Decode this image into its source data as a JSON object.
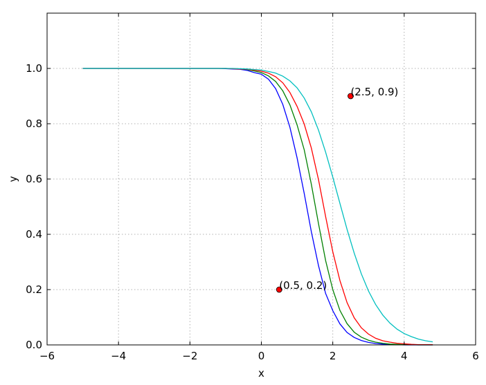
{
  "chart_data": {
    "type": "line",
    "xlabel": "x",
    "ylabel": "y",
    "xlim": [
      -6,
      6
    ],
    "ylim": [
      0.0,
      1.2
    ],
    "xticks": [
      -6,
      -4,
      -2,
      0,
      2,
      4,
      6
    ],
    "xtick_labels": [
      "−6",
      "−4",
      "−2",
      "0",
      "2",
      "4",
      "6"
    ],
    "yticks": [
      0.0,
      0.2,
      0.4,
      0.6,
      0.8,
      1.0
    ],
    "ytick_labels": [
      "0.0",
      "0.2",
      "0.4",
      "0.6",
      "0.8",
      "1.0"
    ],
    "grid": true,
    "x": [
      -5.0,
      -4.8,
      -4.6,
      -4.4,
      -4.2,
      -4.0,
      -3.8,
      -3.6,
      -3.4,
      -3.2,
      -3.0,
      -2.8,
      -2.6,
      -2.4,
      -2.2,
      -2.0,
      -1.8,
      -1.6,
      -1.4,
      -1.2,
      -1.0,
      -0.8,
      -0.6,
      -0.4,
      -0.2,
      0.0,
      0.2,
      0.4,
      0.6,
      0.8,
      1.0,
      1.2,
      1.4,
      1.6,
      1.8,
      2.0,
      2.2,
      2.4,
      2.6,
      2.8,
      3.0,
      3.2,
      3.4,
      3.6,
      3.8,
      4.0,
      4.2,
      4.4,
      4.6,
      4.8
    ],
    "series": [
      {
        "color": "#0000ff",
        "values": [
          1.0,
          1.0,
          1.0,
          1.0,
          1.0,
          1.0,
          1.0,
          1.0,
          1.0,
          1.0,
          1.0,
          1.0,
          1.0,
          1.0,
          1.0,
          1.0,
          1.0,
          1.0,
          1.0,
          1.0,
          0.999,
          0.998,
          0.997,
          0.993,
          0.985,
          0.979,
          0.961,
          0.927,
          0.87,
          0.787,
          0.677,
          0.548,
          0.409,
          0.287,
          0.186,
          0.124,
          0.076,
          0.045,
          0.027,
          0.016,
          0.009,
          0.005,
          0.003,
          0.002,
          0.001,
          0.0,
          0.0,
          0.0,
          0.0,
          0.0
        ]
      },
      {
        "color": "#008000",
        "values": [
          1.0,
          1.0,
          1.0,
          1.0,
          1.0,
          1.0,
          1.0,
          1.0,
          1.0,
          1.0,
          1.0,
          1.0,
          1.0,
          1.0,
          1.0,
          1.0,
          1.0,
          1.0,
          1.0,
          1.0,
          1.0,
          0.999,
          0.998,
          0.996,
          0.991,
          0.985,
          0.973,
          0.953,
          0.919,
          0.868,
          0.796,
          0.706,
          0.581,
          0.439,
          0.305,
          0.2,
          0.125,
          0.077,
          0.046,
          0.028,
          0.017,
          0.01,
          0.006,
          0.003,
          0.002,
          0.001,
          0.001,
          0.0,
          0.0,
          0.0
        ]
      },
      {
        "color": "#ff0000",
        "values": [
          1.0,
          1.0,
          1.0,
          1.0,
          1.0,
          1.0,
          1.0,
          1.0,
          1.0,
          1.0,
          1.0,
          1.0,
          1.0,
          1.0,
          1.0,
          1.0,
          1.0,
          1.0,
          1.0,
          1.0,
          1.0,
          0.999,
          0.998,
          0.997,
          0.994,
          0.99,
          0.983,
          0.97,
          0.948,
          0.913,
          0.863,
          0.799,
          0.712,
          0.598,
          0.464,
          0.337,
          0.233,
          0.153,
          0.098,
          0.062,
          0.039,
          0.024,
          0.015,
          0.01,
          0.006,
          0.004,
          0.002,
          0.001,
          0.001,
          0.001
        ]
      },
      {
        "color": "#00bfbf",
        "values": [
          1.0,
          1.0,
          1.0,
          1.0,
          1.0,
          1.0,
          1.0,
          1.0,
          1.0,
          1.0,
          1.0,
          1.0,
          1.0,
          1.0,
          1.0,
          1.0,
          1.0,
          1.0,
          1.0,
          1.0,
          1.0,
          1.0,
          0.999,
          0.998,
          0.996,
          0.994,
          0.989,
          0.983,
          0.972,
          0.955,
          0.93,
          0.893,
          0.843,
          0.777,
          0.697,
          0.607,
          0.512,
          0.418,
          0.332,
          0.257,
          0.195,
          0.146,
          0.108,
          0.079,
          0.057,
          0.041,
          0.03,
          0.021,
          0.015,
          0.011
        ]
      }
    ],
    "points": [
      {
        "x": 0.5,
        "y": 0.2,
        "label": "(0.5, 0.2)",
        "color": "#ff0000"
      },
      {
        "x": 2.5,
        "y": 0.9,
        "label": "(2.5, 0.9)",
        "color": "#ff0000"
      }
    ]
  }
}
